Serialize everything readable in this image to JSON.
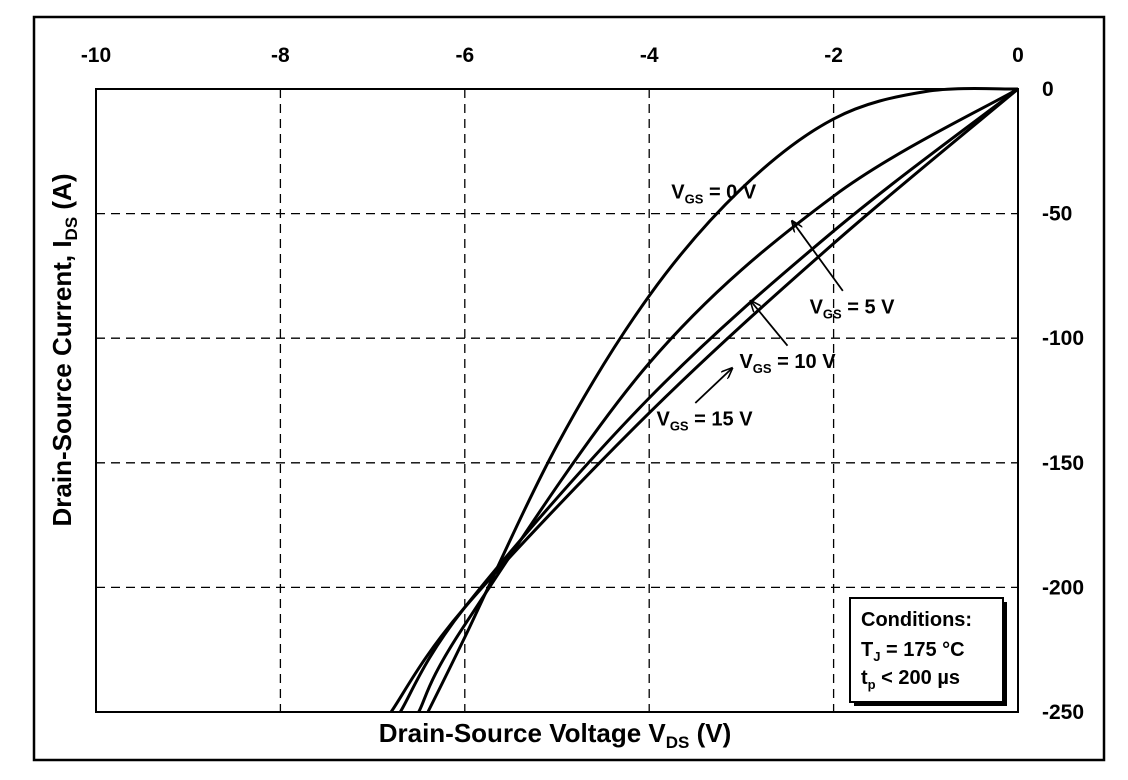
{
  "chart_data": {
    "type": "line",
    "xlabel": {
      "main": "Drain-Source Voltage V",
      "sub": "DS",
      "unit": " (V)"
    },
    "ylabel": {
      "main": "Drain-Source Current, I",
      "sub": "DS",
      "unit": " (A)"
    },
    "xlim": [
      -10,
      0
    ],
    "ylim": [
      -250,
      0
    ],
    "x_ticks": [
      -10,
      -8,
      -6,
      -4,
      -2,
      0
    ],
    "y_ticks": [
      0,
      -50,
      -100,
      -150,
      -200,
      -250
    ],
    "x_axis_position": "top",
    "y_axis_position": "right",
    "grid": true,
    "series": [
      {
        "name": "V_GS = 0 V",
        "label": {
          "main": "V",
          "sub": "GS",
          "rest": " = 0 V"
        },
        "x": [
          0,
          -1.0,
          -2.0,
          -3.0,
          -4.0,
          -5.0,
          -6.0,
          -6.4
        ],
        "y": [
          0,
          -1,
          -12,
          -40,
          -83,
          -143,
          -220,
          -250
        ]
      },
      {
        "name": "V_GS = 5 V",
        "label": {
          "main": "V",
          "sub": "GS",
          "rest": " = 5 V"
        },
        "x": [
          0,
          -2.0,
          -4.0,
          -6.0,
          -6.5
        ],
        "y": [
          0,
          -43,
          -110,
          -215,
          -250
        ]
      },
      {
        "name": "V_GS = 10 V",
        "label": {
          "main": "V",
          "sub": "GS",
          "rest": " = 10 V"
        },
        "x": [
          0,
          -2.0,
          -4.0,
          -6.0,
          -6.7
        ],
        "y": [
          0,
          -57,
          -124,
          -208,
          -250
        ]
      },
      {
        "name": "V_GS = 15 V",
        "label": {
          "main": "V",
          "sub": "GS",
          "rest": " = 15 V"
        },
        "x": [
          0,
          -2.0,
          -4.0,
          -6.0,
          -6.8
        ],
        "y": [
          0,
          -62,
          -130,
          -208,
          -250
        ]
      }
    ],
    "annotations": [
      {
        "series": 0,
        "text_at": [
          -3.3,
          -44
        ],
        "arrow": false
      },
      {
        "series": 1,
        "text_at": [
          -1.8,
          -90
        ],
        "arrow_from": [
          -1.9,
          -81
        ],
        "arrow_to": [
          -2.45,
          -53
        ]
      },
      {
        "series": 2,
        "text_at": [
          -2.5,
          -112
        ],
        "arrow_from": [
          -2.5,
          -103
        ],
        "arrow_to": [
          -2.9,
          -85
        ]
      },
      {
        "series": 3,
        "text_at": [
          -3.4,
          -135
        ],
        "arrow_from": [
          -3.5,
          -126
        ],
        "arrow_to": [
          -3.1,
          -112
        ]
      }
    ],
    "legend": {
      "title": "Conditions:",
      "lines": [
        {
          "main": "T",
          "sub": "J",
          "rest": " = 175 °C"
        },
        {
          "main": "t",
          "sub": "p",
          "rest": " < 200 µs"
        }
      ],
      "placement": "bottom-right"
    }
  }
}
